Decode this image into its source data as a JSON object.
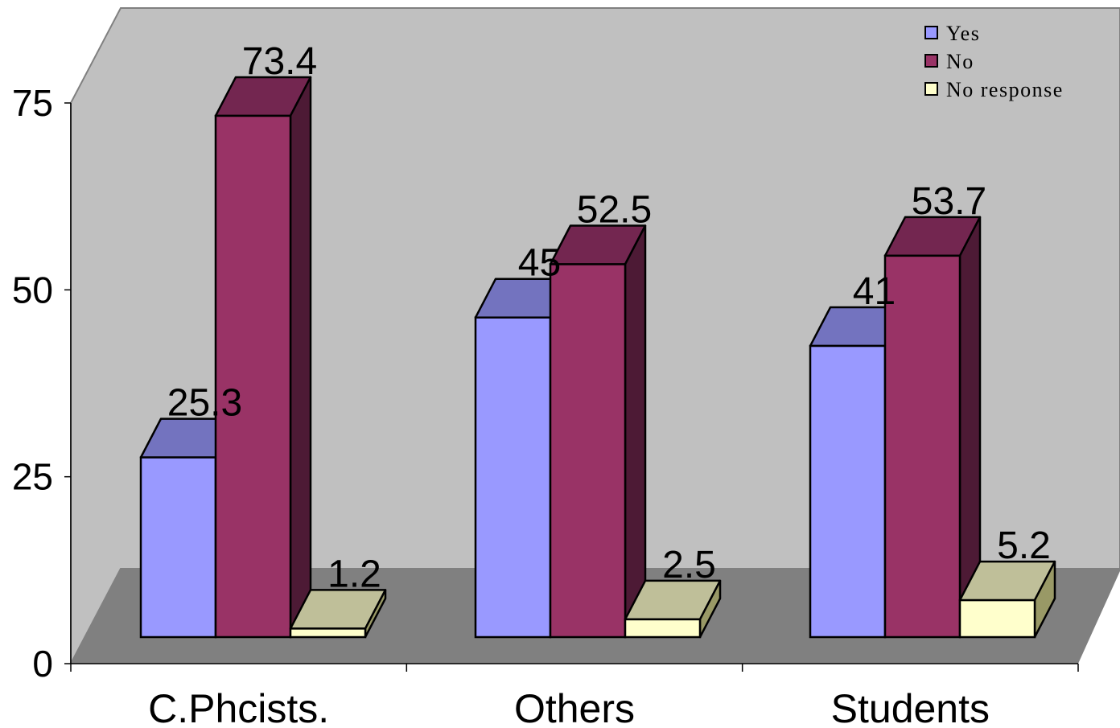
{
  "chart_data": {
    "type": "bar",
    "style": "3d-clustered-column",
    "categories": [
      "C.Phcists.",
      "Others",
      "Students"
    ],
    "series": [
      {
        "name": "Yes",
        "values": [
          25.3,
          45,
          41
        ],
        "color": "#9999ff",
        "top_color": "#7373bf",
        "side_color": "#4d4d80"
      },
      {
        "name": "No",
        "values": [
          73.4,
          52.5,
          53.7
        ],
        "color": "#993366",
        "top_color": "#732650",
        "side_color": "#4d1a35"
      },
      {
        "name": "No response",
        "values": [
          1.2,
          2.5,
          5.2
        ],
        "color": "#ffffcc",
        "top_color": "#bfbf99",
        "side_color": "#999966"
      }
    ],
    "ylim": [
      0,
      75
    ],
    "yticks": [
      "0",
      "25",
      "50",
      "75"
    ],
    "grid": false,
    "legend": "top-right",
    "wall_color": "#c0c0c0",
    "floor_color": "#808080"
  }
}
